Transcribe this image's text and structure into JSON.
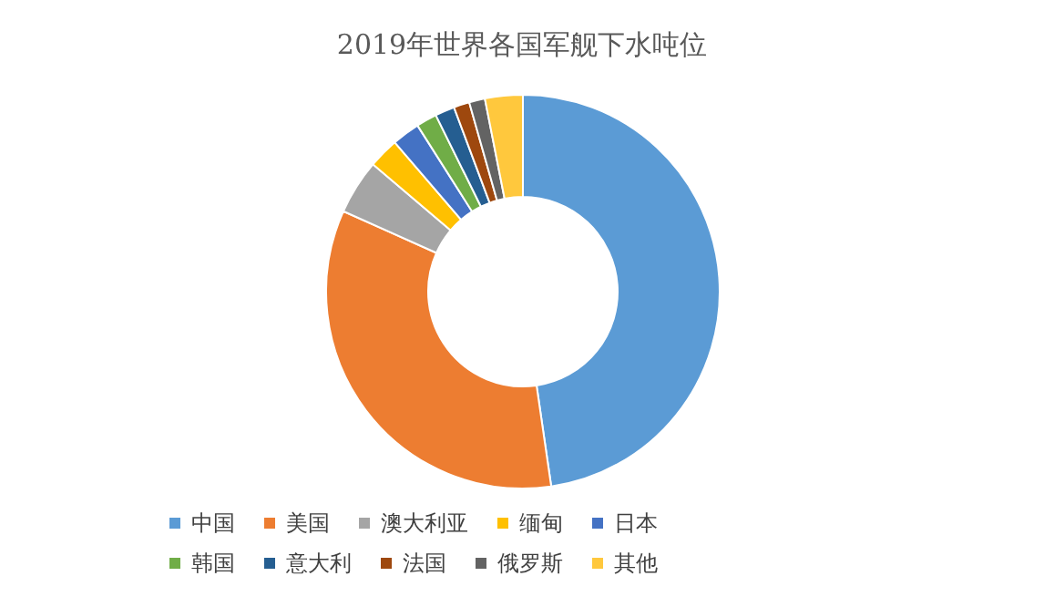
{
  "chart_data": {
    "type": "donut",
    "title": "2019年世界各国军舰下水吨位",
    "categories": [
      "中国",
      "美国",
      "澳大利亚",
      "缅甸",
      "日本",
      "韩国",
      "意大利",
      "法国",
      "俄罗斯",
      "其他"
    ],
    "values": [
      47.7,
      34.0,
      4.5,
      2.5,
      2.3,
      1.7,
      1.6,
      1.3,
      1.3,
      3.1
    ],
    "colors": [
      "#5b9bd5",
      "#ed7d31",
      "#a5a5a5",
      "#ffc000",
      "#4472c4",
      "#70ad47",
      "#255e91",
      "#9e480e",
      "#636363",
      "#ffc83d"
    ],
    "legend": "bottom"
  }
}
